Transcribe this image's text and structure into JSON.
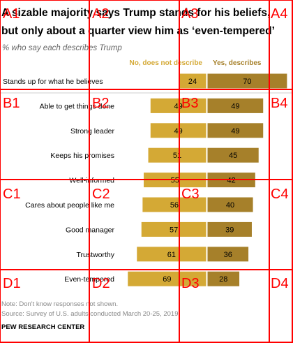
{
  "chart_data": {
    "type": "bar",
    "title": "A sizable majority says Trump stands for his beliefs, but only about a quarter view him as ‘even-tempered’",
    "subtitle": "% who say each describes Trump",
    "categories": [
      "Stands up for what he believes",
      "Able to get things done",
      "Strong leader",
      "Keeps his promises",
      "Well-informed",
      "Cares about people like me",
      "Good manager",
      "Trustworthy",
      "Even-tempered"
    ],
    "series": [
      {
        "name": "No, does not describe",
        "values": [
          24,
          49,
          49,
          51,
          55,
          56,
          57,
          61,
          69
        ],
        "color": "#d4a935"
      },
      {
        "name": "Yes, describes",
        "values": [
          70,
          49,
          49,
          45,
          42,
          40,
          39,
          36,
          28
        ],
        "color": "#a6802a"
      }
    ],
    "xlabel": "",
    "ylabel": "",
    "grid": false,
    "legend": "top",
    "note": "Note: Don't know responses not shown.",
    "source": "Source: Survey of U.S. adults conducted March 20-25, 2019.",
    "org": "PEW RESEARCH CENTER"
  },
  "overlay": {
    "labels": [
      "A1",
      "A2",
      "A3",
      "A4",
      "B1",
      "B2",
      "B3",
      "B4",
      "C1",
      "C2",
      "C3",
      "C4",
      "D1",
      "D2",
      "D3",
      "D4"
    ],
    "color": "#ff0000"
  }
}
